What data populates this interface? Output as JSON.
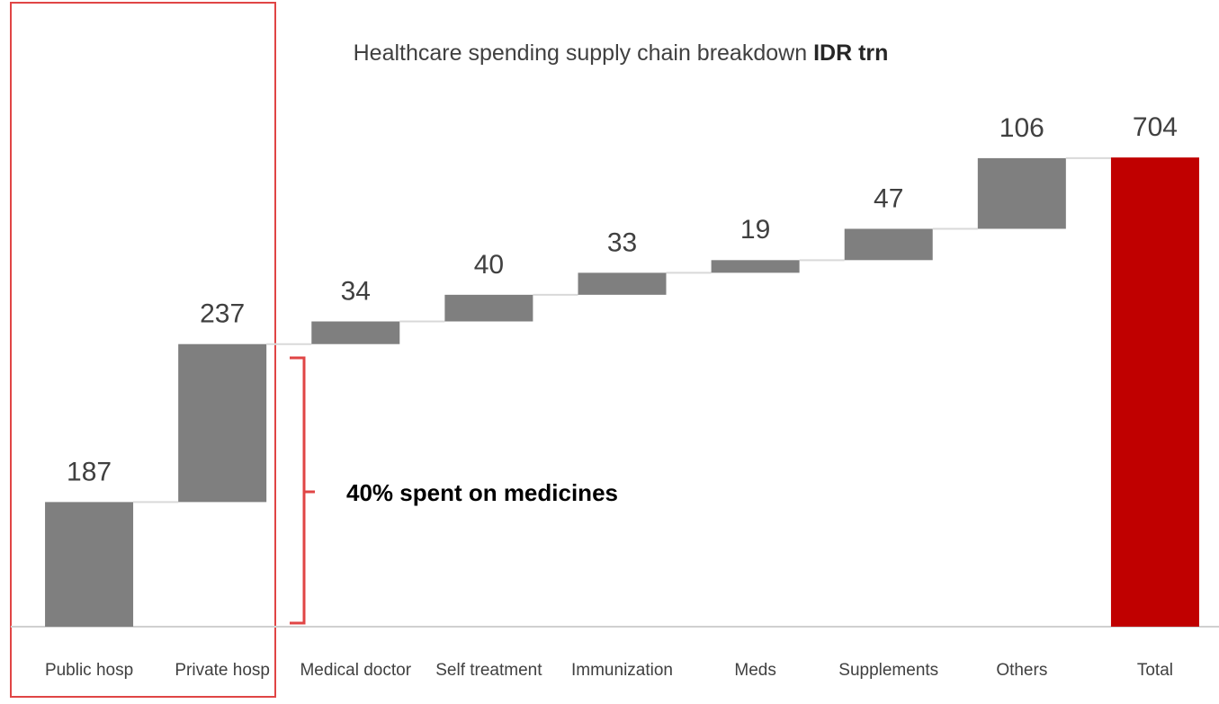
{
  "chart_data": {
    "type": "waterfall",
    "title": "Healthcare spending supply chain breakdown",
    "title_unit": "IDR trn",
    "categories": [
      "Public hosp",
      "Private hosp",
      "Medical doctor",
      "Self treatment",
      "Immunization",
      "Meds",
      "Supplements",
      "Others",
      "Total"
    ],
    "values": [
      187,
      237,
      34,
      40,
      33,
      19,
      47,
      106,
      704
    ],
    "is_total": [
      false,
      false,
      false,
      false,
      false,
      false,
      false,
      false,
      true
    ],
    "colors": {
      "step": "#7f7f7f",
      "total": "#c00000"
    },
    "ylim": [
      0,
      800
    ],
    "annotation": "40% spent on medicines"
  }
}
